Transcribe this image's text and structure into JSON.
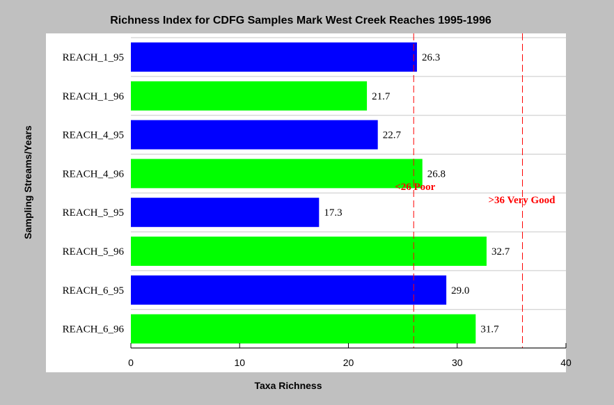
{
  "chart_data": {
    "type": "bar",
    "orientation": "horizontal",
    "title": "Richness Index for CDFG Samples Mark West Creek Reaches 1995-1996",
    "xlabel": "Taxa Richness",
    "ylabel": "Sampling Streams/Years",
    "categories": [
      "REACH_1_95",
      "REACH_1_96",
      "REACH_4_95",
      "REACH_4_96",
      "REACH_5_95",
      "REACH_5_96",
      "REACH_6_95",
      "REACH_6_96"
    ],
    "values": [
      26.3,
      21.7,
      22.7,
      26.8,
      17.3,
      32.7,
      29.0,
      31.7
    ],
    "value_labels": [
      "26.3",
      "21.7",
      "22.7",
      "26.8",
      "17.3",
      "32.7",
      "29.0",
      "31.7"
    ],
    "bar_colors": [
      "#0000ff",
      "#00ff00",
      "#0000ff",
      "#00ff00",
      "#0000ff",
      "#00ff00",
      "#0000ff",
      "#00ff00"
    ],
    "xlim": [
      0,
      40
    ],
    "xticks": [
      0,
      10,
      20,
      30,
      40
    ],
    "grid": "horizontal",
    "plot_background": "#ffffff",
    "page_background": "#c0c0c0",
    "reference_lines": [
      {
        "value": 26,
        "label": "<26 Poor",
        "color": "#ff0000"
      },
      {
        "value": 36,
        "label": ">36 Very Good",
        "color": "#ff0000"
      }
    ]
  }
}
